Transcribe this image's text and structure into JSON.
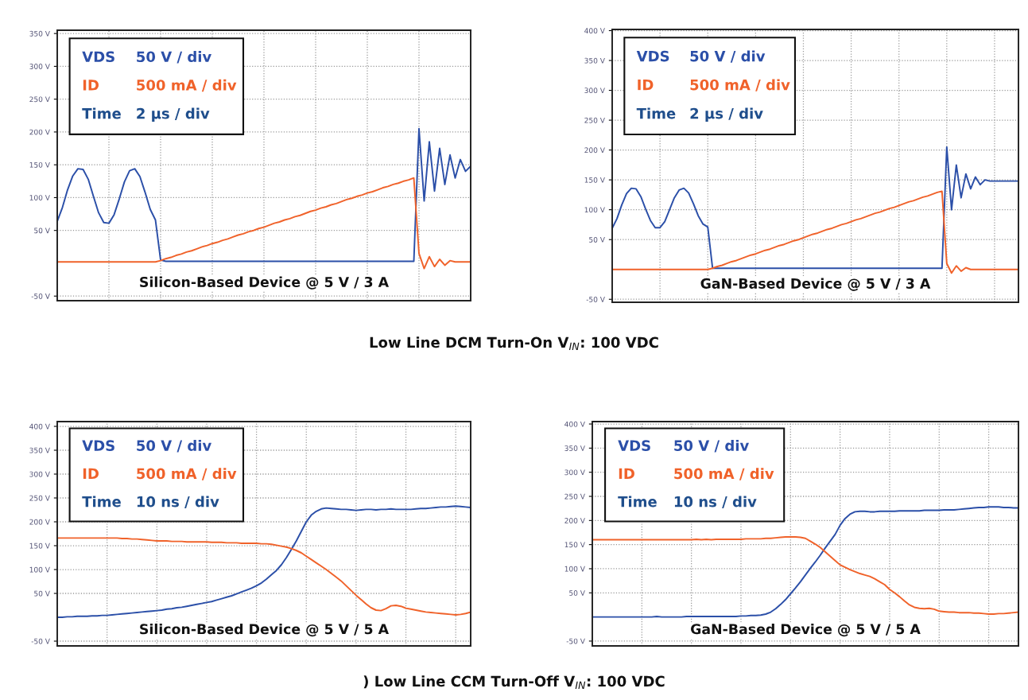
{
  "chart_data": [
    {
      "type": "line",
      "title": "Silicon-Based Device @ 5 V / 3 A",
      "subtitle": "Low Line DCM Turn-On V$_{IN}$: 100 VDC",
      "categories": [
        null,
        null,
        null,
        null,
        null,
        null,
        null,
        null,
        null,
        null,
        null,
        null,
        null,
        null,
        null,
        null,
        null,
        null,
        null,
        null,
        null,
        null,
        null,
        null,
        null,
        null,
        null,
        null,
        null,
        null,
        null,
        null,
        null,
        null,
        null,
        null,
        null,
        null,
        null,
        null,
        null,
        null,
        null,
        null,
        null,
        null,
        null,
        null,
        null,
        null,
        null,
        null,
        null,
        null,
        null,
        null,
        null,
        null,
        null,
        null,
        null,
        null,
        null,
        null,
        null,
        null,
        null,
        null,
        null,
        null,
        null,
        null,
        null,
        null,
        null,
        null,
        null,
        null,
        null,
        null,
        null
      ],
      "series": [
        {
          "name": "VDS",
          "color": "#2b4fa8",
          "values": [
            64,
            85,
            112,
            133,
            144,
            143,
            128,
            102,
            77,
            62,
            61,
            74,
            98,
            124,
            141,
            144,
            132,
            108,
            82,
            66,
            5,
            3,
            3,
            3,
            3,
            3,
            3,
            3,
            3,
            3,
            3,
            3,
            3,
            3,
            3,
            3,
            3,
            3,
            3,
            3,
            3,
            3,
            3,
            3,
            3,
            3,
            3,
            3,
            3,
            3,
            3,
            3,
            3,
            3,
            3,
            3,
            3,
            3,
            3,
            3,
            3,
            3,
            3,
            3,
            3,
            3,
            3,
            3,
            3,
            3,
            205,
            95,
            185,
            110,
            175,
            120,
            165,
            130,
            158,
            140,
            148
          ]
        },
        {
          "name": "ID",
          "color": "#f0622a",
          "values": [
            2,
            2,
            2,
            2,
            2,
            2,
            2,
            2,
            2,
            2,
            2,
            2,
            2,
            2,
            2,
            2,
            2,
            2,
            2,
            2,
            4,
            7,
            9,
            12,
            14,
            17,
            19,
            22,
            25,
            27,
            30,
            32,
            35,
            37,
            40,
            43,
            45,
            48,
            50,
            53,
            55,
            58,
            61,
            63,
            66,
            68,
            71,
            73,
            76,
            79,
            81,
            84,
            86,
            89,
            91,
            94,
            97,
            99,
            102,
            104,
            107,
            109,
            112,
            115,
            117,
            120,
            122,
            125,
            127,
            130,
            15,
            -8,
            10,
            -5,
            6,
            -3,
            4,
            2,
            2,
            2,
            2
          ]
        }
      ],
      "annotations": [
        "50 V / div",
        "500 mA / div",
        "Time",
        "2 µs / div"
      ],
      "ylim": [
        -57,
        355
      ],
      "yticks": [
        {
          "value": -50,
          "label": "-50 V"
        },
        {
          "value": 50,
          "label": "50 V"
        },
        {
          "value": 100,
          "label": "100 V"
        },
        {
          "value": 150,
          "label": "150 V"
        },
        {
          "value": 200,
          "label": "200 V"
        },
        {
          "value": 250,
          "label": "250 V"
        },
        {
          "value": 300,
          "label": "300 V"
        },
        {
          "value": 350,
          "label": "350 V"
        }
      ],
      "grid": true,
      "legend": "top left"
    },
    {
      "type": "line",
      "title": "GaN-Based Device @ 5 V / 3 A",
      "categories": [
        null,
        null,
        null,
        null,
        null,
        null,
        null,
        null,
        null,
        null,
        null,
        null,
        null,
        null,
        null,
        null,
        null,
        null,
        null,
        null,
        null,
        null,
        null,
        null,
        null,
        null,
        null,
        null,
        null,
        null,
        null,
        null,
        null,
        null,
        null,
        null,
        null,
        null,
        null,
        null,
        null,
        null,
        null,
        null,
        null,
        null,
        null,
        null,
        null,
        null,
        null,
        null,
        null,
        null,
        null,
        null,
        null,
        null,
        null,
        null,
        null,
        null,
        null,
        null,
        null,
        null,
        null,
        null,
        null,
        null,
        null,
        null,
        null,
        null,
        null,
        null,
        null,
        null,
        null,
        null,
        null,
        null,
        null,
        null,
        null,
        null
      ],
      "series": [
        {
          "name": "VDS",
          "color": "#2b4fa8",
          "values": [
            69,
            85,
            108,
            127,
            136,
            135,
            122,
            101,
            82,
            70,
            70,
            80,
            100,
            120,
            133,
            136,
            128,
            110,
            90,
            76,
            71,
            2,
            2,
            2,
            2,
            2,
            2,
            2,
            2,
            2,
            2,
            2,
            2,
            2,
            2,
            2,
            2,
            2,
            2,
            2,
            2,
            2,
            2,
            2,
            2,
            2,
            2,
            2,
            2,
            2,
            2,
            2,
            2,
            2,
            2,
            2,
            2,
            2,
            2,
            2,
            2,
            2,
            2,
            2,
            2,
            2,
            2,
            2,
            2,
            2,
            205,
            100,
            175,
            120,
            160,
            135,
            155,
            142,
            150,
            148,
            148,
            148,
            148,
            148,
            148,
            148
          ]
        },
        {
          "name": "ID",
          "color": "#f0622a",
          "values": [
            0,
            0,
            0,
            0,
            0,
            0,
            0,
            0,
            0,
            0,
            0,
            0,
            0,
            0,
            0,
            0,
            0,
            0,
            0,
            0,
            0,
            2,
            5,
            7,
            10,
            13,
            15,
            18,
            21,
            24,
            26,
            29,
            32,
            34,
            37,
            40,
            42,
            45,
            48,
            50,
            53,
            56,
            59,
            61,
            64,
            67,
            69,
            72,
            75,
            77,
            80,
            83,
            85,
            88,
            91,
            94,
            96,
            99,
            102,
            104,
            107,
            110,
            113,
            115,
            118,
            121,
            123,
            126,
            129,
            131,
            10,
            -6,
            6,
            -3,
            3,
            0,
            0,
            0,
            0,
            0,
            0,
            0,
            0,
            0,
            0,
            0
          ]
        }
      ],
      "annotations": [
        "50 V / div",
        "500 mA / div",
        "Time",
        "2 µs / div"
      ],
      "ylim": [
        -55,
        402
      ],
      "yticks": [
        {
          "value": -50,
          "label": "-50 V"
        },
        {
          "value": 50,
          "label": "50 V"
        },
        {
          "value": 100,
          "label": "100 V"
        },
        {
          "value": 150,
          "label": "150 V"
        },
        {
          "value": 200,
          "label": "200 V"
        },
        {
          "value": 250,
          "label": "250 V"
        },
        {
          "value": 300,
          "label": "300 V"
        },
        {
          "value": 350,
          "label": "350 V"
        },
        {
          "value": 400,
          "label": "400 V"
        }
      ],
      "grid": true,
      "legend": "top left"
    },
    {
      "type": "line",
      "title": "Silicon-Based Device @ 5 V / 5 A",
      "subtitle": ") Low Line CCM Turn-Off V$_{IN}$: 100 VDC",
      "categories": [
        null,
        null,
        null,
        null,
        null,
        null,
        null,
        null,
        null,
        null,
        null,
        null,
        null,
        null,
        null,
        null,
        null,
        null,
        null,
        null,
        null,
        null,
        null,
        null,
        null,
        null,
        null,
        null,
        null,
        null,
        null,
        null,
        null,
        null,
        null,
        null,
        null,
        null,
        null,
        null,
        null,
        null,
        null,
        null,
        null,
        null,
        null,
        null,
        null,
        null,
        null,
        null,
        null,
        null,
        null,
        null,
        null,
        null,
        null,
        null,
        null,
        null,
        null,
        null,
        null,
        null,
        null,
        null,
        null,
        null,
        null,
        null,
        null,
        null,
        null,
        null,
        null,
        null,
        null,
        null,
        null,
        null,
        null,
        null
      ],
      "series": [
        {
          "name": "VDS",
          "color": "#2b4fa8",
          "values": [
            0,
            0,
            1,
            1,
            2,
            2,
            2,
            3,
            3,
            4,
            4,
            5,
            6,
            7,
            8,
            9,
            10,
            11,
            12,
            13,
            14,
            15,
            17,
            18,
            20,
            21,
            23,
            25,
            27,
            29,
            31,
            33,
            36,
            39,
            42,
            45,
            49,
            53,
            57,
            61,
            66,
            72,
            80,
            89,
            98,
            110,
            125,
            142,
            160,
            180,
            200,
            214,
            222,
            227,
            229,
            228,
            227,
            226,
            226,
            225,
            224,
            225,
            226,
            226,
            225,
            226,
            226,
            227,
            226,
            226,
            226,
            226,
            227,
            228,
            228,
            229,
            230,
            231,
            231,
            232,
            233,
            232,
            231,
            230
          ]
        },
        {
          "name": "ID",
          "color": "#f0622a",
          "values": [
            166,
            166,
            166,
            166,
            166,
            166,
            166,
            166,
            166,
            166,
            166,
            166,
            166,
            165,
            165,
            164,
            164,
            163,
            162,
            161,
            160,
            160,
            160,
            159,
            159,
            159,
            158,
            158,
            158,
            158,
            158,
            157,
            157,
            157,
            156,
            156,
            156,
            155,
            155,
            155,
            155,
            154,
            154,
            153,
            151,
            149,
            147,
            144,
            140,
            135,
            128,
            121,
            114,
            107,
            100,
            92,
            84,
            76,
            66,
            56,
            46,
            37,
            28,
            20,
            15,
            14,
            18,
            24,
            25,
            23,
            19,
            17,
            15,
            13,
            11,
            10,
            9,
            8,
            7,
            6,
            5,
            6,
            8,
            11
          ]
        }
      ],
      "annotations": [
        "50 V / div",
        "500 mA / div",
        "Time",
        "10 ns / div"
      ],
      "ylim": [
        -60,
        410
      ],
      "yticks": [
        {
          "value": -50,
          "label": "-50 V"
        },
        {
          "value": 50,
          "label": "50 V"
        },
        {
          "value": 100,
          "label": "100 V"
        },
        {
          "value": 150,
          "label": "150 V"
        },
        {
          "value": 200,
          "label": "200 V"
        },
        {
          "value": 250,
          "label": "250 V"
        },
        {
          "value": 300,
          "label": "300 V"
        },
        {
          "value": 350,
          "label": "350 V"
        },
        {
          "value": 400,
          "label": "400 V"
        }
      ],
      "grid": true,
      "legend": "top left"
    },
    {
      "type": "line",
      "title": "GaN-Based Device @ 5 V / 5 A",
      "categories": [
        null,
        null,
        null,
        null,
        null,
        null,
        null,
        null,
        null,
        null,
        null,
        null,
        null,
        null,
        null,
        null,
        null,
        null,
        null,
        null,
        null,
        null,
        null,
        null,
        null,
        null,
        null,
        null,
        null,
        null,
        null,
        null,
        null,
        null,
        null,
        null,
        null,
        null,
        null,
        null,
        null,
        null,
        null,
        null,
        null,
        null,
        null,
        null,
        null,
        null,
        null,
        null,
        null,
        null,
        null,
        null,
        null,
        null,
        null,
        null,
        null,
        null,
        null,
        null,
        null,
        null,
        null,
        null,
        null,
        null,
        null,
        null,
        null,
        null,
        null,
        null,
        null,
        null,
        null,
        null,
        null,
        null,
        null,
        null,
        null,
        null,
        null
      ],
      "series": [
        {
          "name": "VDS",
          "color": "#2b4fa8",
          "values": [
            0,
            0,
            0,
            0,
            0,
            0,
            0,
            0,
            0,
            0,
            0,
            0,
            0,
            1,
            0,
            0,
            0,
            0,
            0,
            1,
            1,
            1,
            1,
            1,
            1,
            1,
            1,
            1,
            1,
            1,
            2,
            2,
            3,
            3,
            4,
            6,
            10,
            17,
            26,
            36,
            48,
            60,
            73,
            87,
            101,
            114,
            128,
            143,
            157,
            171,
            190,
            204,
            213,
            218,
            219,
            219,
            218,
            218,
            219,
            219,
            219,
            219,
            220,
            220,
            220,
            220,
            220,
            221,
            221,
            221,
            221,
            222,
            222,
            222,
            223,
            224,
            225,
            226,
            227,
            227,
            228,
            228,
            228,
            227,
            227,
            226,
            226
          ]
        },
        {
          "name": "ID",
          "color": "#f0622a",
          "values": [
            160,
            160,
            160,
            160,
            160,
            160,
            160,
            160,
            160,
            160,
            160,
            160,
            160,
            160,
            160,
            160,
            160,
            160,
            160,
            160,
            160,
            161,
            160,
            161,
            160,
            161,
            161,
            161,
            161,
            161,
            161,
            162,
            162,
            162,
            162,
            163,
            163,
            164,
            165,
            166,
            166,
            166,
            165,
            163,
            157,
            151,
            144,
            135,
            126,
            117,
            108,
            103,
            98,
            94,
            90,
            87,
            84,
            79,
            73,
            67,
            57,
            50,
            42,
            33,
            25,
            20,
            18,
            17,
            18,
            16,
            12,
            11,
            10,
            10,
            9,
            9,
            9,
            8,
            8,
            7,
            6,
            6,
            7,
            7,
            8,
            9,
            10
          ]
        }
      ],
      "annotations": [
        "50 V / div",
        "500 mA / div",
        "Time",
        "10 ns / div"
      ],
      "ylim": [
        -60,
        405
      ],
      "yticks": [
        {
          "value": -50,
          "label": "-50 V"
        },
        {
          "value": 50,
          "label": "50 V"
        },
        {
          "value": 100,
          "label": "100 V"
        },
        {
          "value": 150,
          "label": "150 V"
        },
        {
          "value": 200,
          "label": "200 V"
        },
        {
          "value": 250,
          "label": "250 V"
        },
        {
          "value": 300,
          "label": "300 V"
        },
        {
          "value": 350,
          "label": "350 V"
        },
        {
          "value": 400,
          "label": "400 V"
        }
      ],
      "grid": true,
      "legend": "top left"
    }
  ]
}
